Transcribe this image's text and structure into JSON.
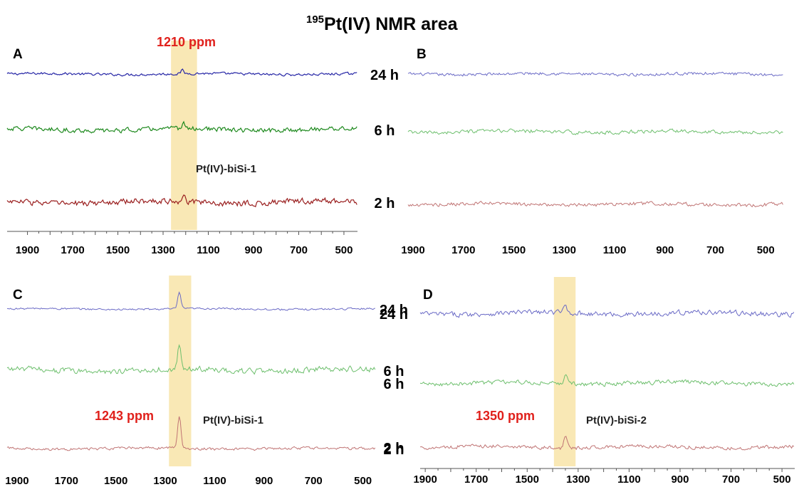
{
  "title": {
    "superscript": "195",
    "text": "Pt(IV) NMR area"
  },
  "colors": {
    "t24h": "#2626a6",
    "t6h": "#1f8a1f",
    "t2h": "#9a1f1f",
    "t24h_light": "#6a6ac6",
    "t6h_light": "#6dbf6d",
    "t2h_light": "#c07474",
    "highlight": "#f8e4a8",
    "ppm_text": "#e0201b"
  },
  "chart_data": [
    {
      "panel": "A",
      "type": "line",
      "xlim": [
        1990,
        440
      ],
      "x_ticks": [
        "1900",
        "1700",
        "1500",
        "1300",
        "1100",
        "900",
        "700",
        "500"
      ],
      "highlight_range": [
        1265,
        1150
      ],
      "highlight_label": "1210 ppm",
      "compound_label": "Pt(IV)-biSi-1",
      "series": [
        {
          "name": "24 h",
          "color_key": "t24h",
          "noise": 0.6,
          "peaks": [
            {
              "x": 1215,
              "height": 1.2
            }
          ]
        },
        {
          "name": "6 h",
          "color_key": "t6h",
          "noise": 1.1,
          "peaks": [
            {
              "x": 1210,
              "height": 2.0
            }
          ]
        },
        {
          "name": "2 h",
          "color_key": "t2h",
          "noise": 1.4,
          "peaks": [
            {
              "x": 1208,
              "height": 3.2
            }
          ]
        }
      ]
    },
    {
      "panel": "B",
      "type": "line",
      "xlim": [
        1920,
        430
      ],
      "x_ticks": [
        "1900",
        "1700",
        "1500",
        "1300",
        "1100",
        "900",
        "700",
        "500"
      ],
      "series": [
        {
          "name": "24 h",
          "color_key": "t24h_light",
          "noise": 0.7,
          "peaks": []
        },
        {
          "name": "6 h",
          "color_key": "t6h_light",
          "noise": 0.9,
          "peaks": []
        },
        {
          "name": "2 h",
          "color_key": "t2h_light",
          "noise": 0.9,
          "peaks": []
        }
      ]
    },
    {
      "panel": "C",
      "type": "line",
      "xlim": [
        1940,
        450
      ],
      "x_ticks": [
        "1900",
        "1700",
        "1500",
        "1300",
        "1100",
        "900",
        "700",
        "500"
      ],
      "highlight_range": [
        1285,
        1195
      ],
      "highlight_label": "1243 ppm",
      "compound_label": "Pt(IV)-biSi-1",
      "series": [
        {
          "name": "24 h",
          "color_key": "t24h_light",
          "noise": 0.2,
          "peaks": [
            {
              "x": 1243,
              "height": 2.6
            }
          ]
        },
        {
          "name": "6 h",
          "color_key": "t6h_light",
          "noise": 0.6,
          "peaks": [
            {
              "x": 1243,
              "height": 3.8
            }
          ]
        },
        {
          "name": "2 h",
          "color_key": "t2h_light",
          "noise": 0.3,
          "peaks": [
            {
              "x": 1243,
              "height": 5.0
            }
          ]
        }
      ]
    },
    {
      "panel": "D",
      "type": "line",
      "xlim": [
        1920,
        450
      ],
      "x_ticks": [
        "1900",
        "1700",
        "1500",
        "1300",
        "1100",
        "900",
        "700",
        "500"
      ],
      "highlight_range": [
        1395,
        1310
      ],
      "highlight_label": "1350 ppm",
      "compound_label": "Pt(IV)-biSi-2",
      "series": [
        {
          "name": "24 h",
          "color_key": "t24h_light",
          "noise": 0.8,
          "peaks": [
            {
              "x": 1350,
              "height": 1.8
            }
          ]
        },
        {
          "name": "6 h",
          "color_key": "t6h_light",
          "noise": 0.7,
          "peaks": [
            {
              "x": 1350,
              "height": 2.2
            }
          ]
        },
        {
          "name": "2 h",
          "color_key": "t2h_light",
          "noise": 0.6,
          "peaks": [
            {
              "x": 1350,
              "height": 2.8
            }
          ]
        }
      ]
    }
  ]
}
